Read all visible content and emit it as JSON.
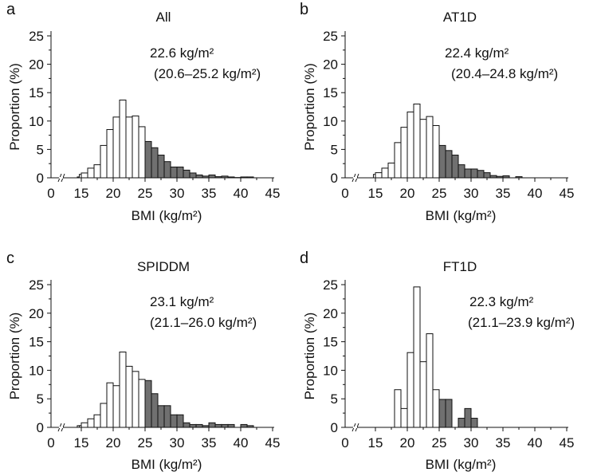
{
  "colors": {
    "below25": "#ffffff",
    "above25": "#707070",
    "stroke": "#111111"
  },
  "chart_data": [
    {
      "type": "bar",
      "panel": "a",
      "title": "All",
      "median": "22.6 kg/m²",
      "iqr": "(20.6–25.2 kg/m²)",
      "xlabel": "BMI (kg/m²)",
      "ylabel": "Proportion (%)",
      "xticks": [
        0,
        15,
        20,
        25,
        30,
        35,
        40,
        45
      ],
      "yticks": [
        0,
        5,
        10,
        15,
        20,
        25
      ],
      "ylim": [
        0,
        25
      ],
      "shade_from": 25,
      "bin_start": 13,
      "values": [
        0.15,
        0.6,
        0.85,
        1.7,
        2.3,
        5.7,
        8.5,
        10.7,
        13.7,
        10.7,
        10.9,
        9.0,
        6.4,
        5.3,
        4.0,
        2.85,
        1.9,
        1.9,
        1.35,
        0.85,
        0.5,
        0.3,
        0.5,
        0.2,
        0.3,
        0.15,
        0.05,
        0.15,
        0.15
      ]
    },
    {
      "type": "bar",
      "panel": "b",
      "title": "AT1D",
      "median": "22.4 kg/m²",
      "iqr": "(20.4–24.8 kg/m²)",
      "xlabel": "BMI (kg/m²)",
      "ylabel": "Proportion (%)",
      "xticks": [
        0,
        15,
        20,
        25,
        30,
        35,
        40,
        45
      ],
      "yticks": [
        0,
        5,
        10,
        15,
        20,
        25
      ],
      "ylim": [
        0,
        25
      ],
      "shade_from": 25,
      "bin_start": 14,
      "values": [
        0.6,
        0.9,
        1.7,
        2.6,
        6.2,
        8.9,
        11.6,
        13.0,
        10.3,
        10.8,
        9.2,
        5.7,
        4.8,
        4.0,
        2.3,
        1.55,
        1.55,
        1.3,
        0.9,
        0.4,
        0.25,
        0.35,
        0,
        0.2
      ]
    },
    {
      "type": "bar",
      "panel": "c",
      "title": "SPIDDM",
      "median": "23.1 kg/m²",
      "iqr": "(21.1–26.0 kg/m²)",
      "xlabel": "BMI (kg/m²)",
      "ylabel": "Proportion (%)",
      "xticks": [
        0,
        15,
        20,
        25,
        30,
        35,
        40,
        45
      ],
      "yticks": [
        0,
        5,
        10,
        15,
        20,
        25
      ],
      "ylim": [
        0,
        25
      ],
      "shade_from": 25,
      "bin_start": 13,
      "values": [
        0.3,
        0.3,
        0.8,
        1.5,
        2.2,
        4.2,
        7.8,
        7.3,
        13.2,
        10.7,
        9.8,
        8.4,
        8.2,
        5.9,
        3.8,
        3.8,
        2.2,
        2.2,
        0.8,
        0.5,
        0.5,
        0.3,
        0.8,
        0.5,
        0.5,
        0.5,
        0,
        0.5,
        0.3
      ]
    },
    {
      "type": "bar",
      "panel": "d",
      "title": "FT1D",
      "median": "22.3 kg/m²",
      "iqr": "(21.1–23.9 kg/m²)",
      "xlabel": "BMI (kg/m²)",
      "ylabel": "Proportion (%)",
      "xticks": [
        0,
        15,
        20,
        25,
        30,
        35,
        40,
        45
      ],
      "yticks": [
        0,
        5,
        10,
        15,
        20,
        25
      ],
      "ylim": [
        0,
        25
      ],
      "shade_from": 25,
      "bin_start": 18,
      "values": [
        6.6,
        3.3,
        13.1,
        24.6,
        11.5,
        16.4,
        6.6,
        4.9,
        4.9,
        0,
        1.6,
        3.3,
        1.6
      ]
    }
  ]
}
